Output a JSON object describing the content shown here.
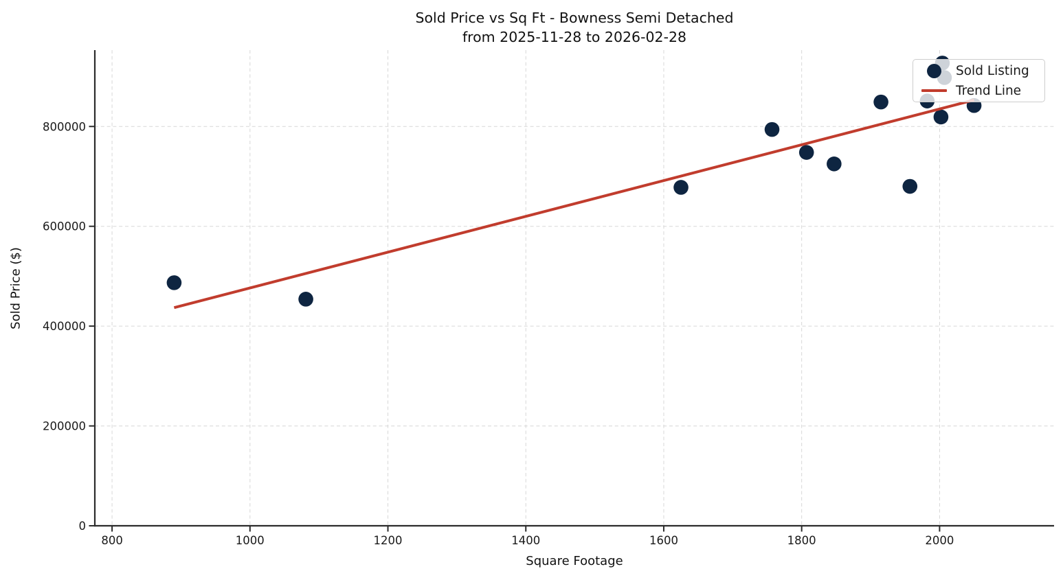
{
  "figure": {
    "title_line1": "Sold Price vs Sq Ft - Bowness Semi Detached",
    "title_line2": "from 2025-11-28 to 2026-02-28"
  },
  "axes": {
    "xlabel": "Square Footage",
    "ylabel": "Sold Price ($)"
  },
  "legend": {
    "items": [
      {
        "label": "Sold Listing",
        "marker": "dot",
        "color": "#0e2541"
      },
      {
        "label": "Trend Line",
        "marker": "line",
        "color": "#c13c2d"
      }
    ]
  },
  "style": {
    "point_color": "#0e2541",
    "trend_color": "#c13c2d",
    "grid_color": "#d7d7d7",
    "axis_color": "#2b2b2b",
    "text_color": "#1a1a1a",
    "legend_border_color": "#cdcdcd",
    "legend_bg": "rgba(255,255,255,0.8)"
  },
  "chart_data": {
    "type": "scatter",
    "title": "Sold Price vs Sq Ft - Bowness Semi Detached from 2025-11-28 to 2026-02-28",
    "xlabel": "Square Footage",
    "ylabel": "Sold Price ($)",
    "xlim": [
      775,
      2166
    ],
    "ylim": [
      0,
      953000
    ],
    "x_ticks": [
      800,
      1000,
      1200,
      1400,
      1600,
      1800,
      2000
    ],
    "y_ticks": [
      0,
      200000,
      400000,
      600000,
      800000
    ],
    "grid": true,
    "grid_style": "dashed",
    "legend_position": "upper right",
    "series": [
      {
        "name": "Sold Listing",
        "type": "scatter",
        "color": "#0e2541",
        "x": [
          890,
          1081,
          1625,
          1757,
          1807,
          1847,
          1915,
          1957,
          1982,
          2002,
          2004,
          2007,
          2050
        ],
        "y": [
          487000,
          454000,
          678000,
          794000,
          748000,
          725000,
          849000,
          680000,
          851000,
          819000,
          927000,
          898000,
          842000
        ]
      },
      {
        "name": "Trend Line",
        "type": "line",
        "color": "#c13c2d",
        "x": [
          890,
          2050
        ],
        "y": [
          437000,
          853000
        ]
      }
    ]
  }
}
